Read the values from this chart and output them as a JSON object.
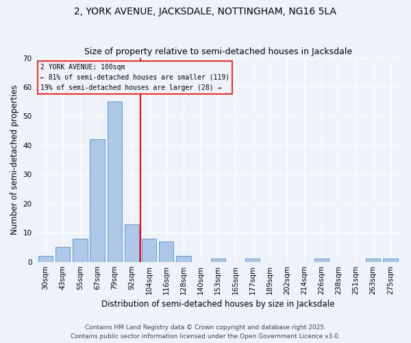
{
  "title": "2, YORK AVENUE, JACKSDALE, NOTTINGHAM, NG16 5LA",
  "subtitle": "Size of property relative to semi-detached houses in Jacksdale",
  "xlabel": "Distribution of semi-detached houses by size in Jacksdale",
  "ylabel": "Number of semi-detached properties",
  "bar_labels": [
    "30sqm",
    "43sqm",
    "55sqm",
    "67sqm",
    "79sqm",
    "92sqm",
    "104sqm",
    "116sqm",
    "128sqm",
    "140sqm",
    "153sqm",
    "165sqm",
    "177sqm",
    "189sqm",
    "202sqm",
    "214sqm",
    "226sqm",
    "238sqm",
    "251sqm",
    "263sqm",
    "275sqm"
  ],
  "bar_values": [
    2,
    5,
    8,
    42,
    55,
    13,
    8,
    7,
    2,
    0,
    1,
    0,
    1,
    0,
    0,
    0,
    1,
    0,
    0,
    1,
    1
  ],
  "bar_color": "#aec6e8",
  "bar_edge_color": "#5a9ad4",
  "ylim": [
    0,
    70
  ],
  "yticks": [
    0,
    10,
    20,
    30,
    40,
    50,
    60,
    70
  ],
  "property_line_index": 6,
  "annotation_title": "2 YORK AVENUE: 100sqm",
  "annotation_line1": "← 81% of semi-detached houses are smaller (119)",
  "annotation_line2": "19% of semi-detached houses are larger (28) →",
  "footer1": "Contains HM Land Registry data © Crown copyright and database right 2025.",
  "footer2": "Contains public sector information licensed under the Open Government Licence v3.0.",
  "bg_color": "#eef2f9",
  "grid_color": "#ffffff",
  "title_fontsize": 10,
  "subtitle_fontsize": 9,
  "label_fontsize": 8.5,
  "tick_fontsize": 7.5,
  "footer_fontsize": 6.5
}
